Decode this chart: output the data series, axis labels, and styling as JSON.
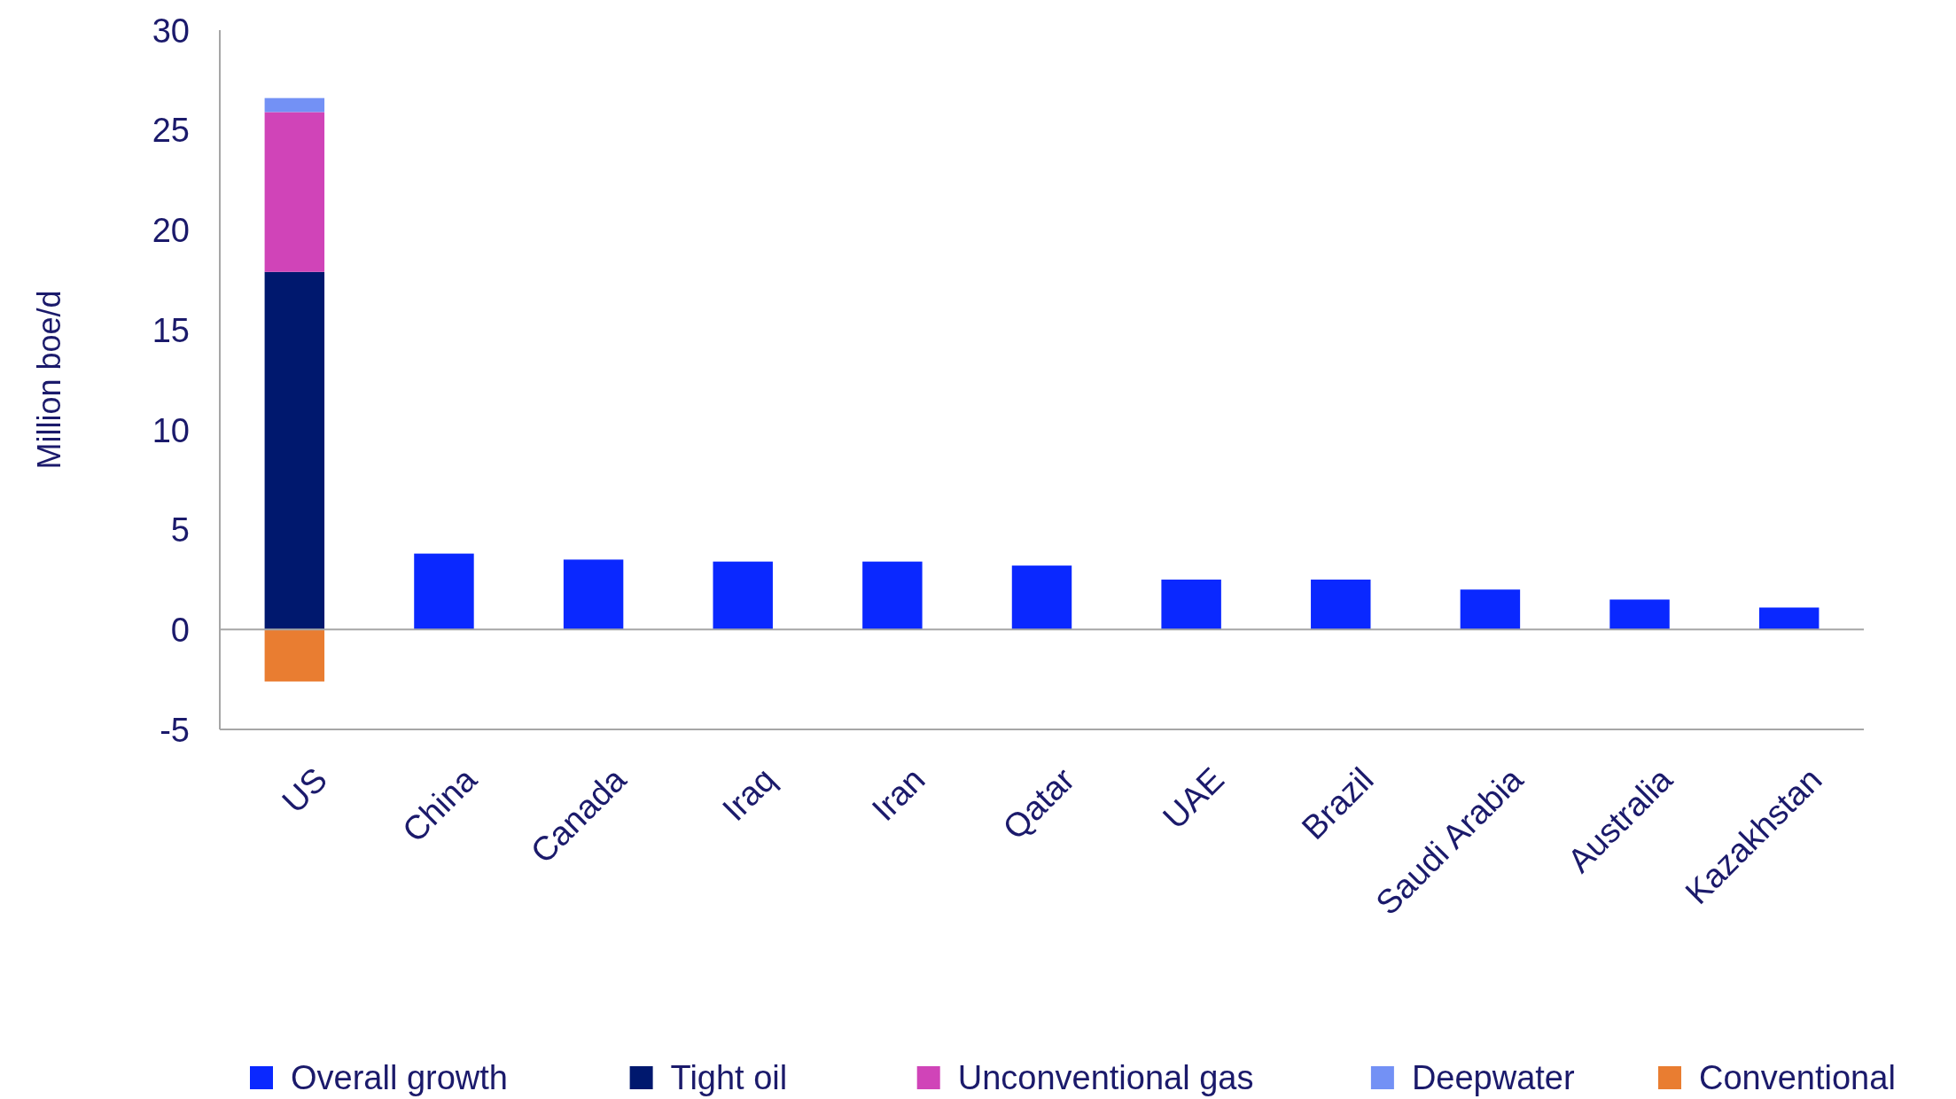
{
  "chart_data": {
    "type": "bar",
    "stacked": true,
    "ylabel": "Million boe/d",
    "categories": [
      "US",
      "China",
      "Canada",
      "Iraq",
      "Iran",
      "Qatar",
      "UAE",
      "Brazil",
      "Saudi Arabia",
      "Australia",
      "Kazakhstan"
    ],
    "series": [
      {
        "name": "Overall growth",
        "color": "#0a28ff",
        "values": [
          null,
          3.8,
          3.5,
          3.4,
          3.4,
          3.2,
          2.5,
          2.5,
          2.0,
          1.5,
          1.1
        ]
      },
      {
        "name": "Tight oil",
        "color": "#00186e",
        "values": [
          17.9,
          null,
          null,
          null,
          null,
          null,
          null,
          null,
          null,
          null,
          null
        ]
      },
      {
        "name": "Unconventional gas",
        "color": "#d044b8",
        "values": [
          8.0,
          null,
          null,
          null,
          null,
          null,
          null,
          null,
          null,
          null,
          null
        ]
      },
      {
        "name": "Deepwater",
        "color": "#7391f5",
        "values": [
          0.7,
          null,
          null,
          null,
          null,
          null,
          null,
          null,
          null,
          null,
          null
        ]
      },
      {
        "name": "Conventional",
        "color": "#e97d31",
        "values": [
          -2.6,
          null,
          null,
          null,
          null,
          null,
          null,
          null,
          null,
          null,
          null
        ]
      }
    ],
    "ylim": [
      -5,
      30
    ],
    "yticks": [
      -5,
      0,
      5,
      10,
      15,
      20,
      25,
      30
    ],
    "legend": "bottom"
  }
}
